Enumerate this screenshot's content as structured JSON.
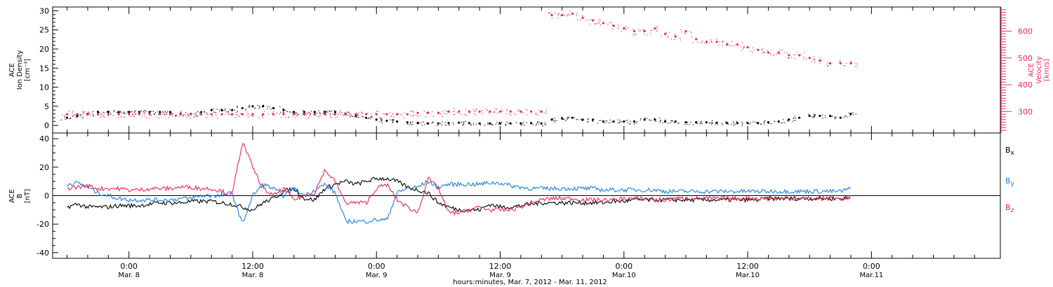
{
  "chart_data": [
    {
      "type": "scatter",
      "panel": "plasma",
      "ylabel_lines": [
        "ACE",
        "Ion Density",
        "[cm⁻³]"
      ],
      "ylim": [
        -2,
        31
      ],
      "yticks": [
        0,
        5,
        10,
        15,
        20,
        25,
        30
      ],
      "right_ylabel_lines": [
        "ACE",
        "Velocity",
        "[km/s]"
      ],
      "right_ylim": [
        220,
        690
      ],
      "right_yticks": [
        300,
        400,
        500,
        600
      ],
      "colors": {
        "density": "#000000",
        "velocity": "#e8285a"
      },
      "series": [
        {
          "axis": "left",
          "color": "#000000",
          "x_hours": [
            -6,
            -5,
            -4,
            -3,
            -2,
            -1,
            0,
            1,
            2,
            3,
            4,
            5,
            6,
            7,
            8,
            9,
            10,
            11,
            12,
            13,
            14,
            15,
            16,
            17,
            18,
            19,
            20,
            21,
            22,
            23,
            24,
            25,
            26,
            27,
            28,
            29,
            30,
            31,
            32,
            33,
            34,
            35,
            36,
            37,
            38,
            39,
            40,
            41,
            42,
            43,
            44,
            45,
            46,
            47,
            48,
            49,
            50,
            51,
            52,
            53,
            54,
            55,
            56,
            57,
            58,
            59,
            60,
            61,
            62,
            63,
            64,
            65,
            66,
            67,
            68,
            69,
            70
          ],
          "values": [
            2.0,
            2.5,
            3.0,
            3.5,
            3.5,
            3.5,
            3.5,
            3.5,
            3.5,
            3.5,
            3.5,
            3.0,
            3.0,
            3.5,
            4.0,
            4.0,
            4.0,
            4.5,
            5.0,
            5.0,
            4.5,
            4.0,
            3.5,
            3.5,
            3.5,
            3.5,
            3.5,
            3.0,
            2.5,
            2.0,
            1.5,
            1.2,
            1.0,
            0.8,
            0.6,
            0.5,
            0.5,
            0.6,
            0.7,
            0.6,
            0.5,
            0.5,
            0.5,
            0.5,
            0.5,
            0.6,
            0.5,
            1.5,
            1.8,
            2.0,
            1.5,
            1.5,
            1.0,
            1.0,
            1.0,
            1.0,
            1.5,
            1.5,
            1.0,
            1.0,
            0.8,
            0.8,
            0.8,
            0.7,
            0.6,
            0.6,
            0.6,
            0.6,
            0.8,
            1.0,
            1.5,
            2.0,
            2.5,
            2.5,
            2.5,
            2.0,
            3.0
          ]
        },
        {
          "axis": "right",
          "color": "#e8285a",
          "x_hours": [
            -6,
            -5,
            -4,
            -3,
            -2,
            -1,
            0,
            1,
            2,
            3,
            4,
            5,
            6,
            7,
            8,
            9,
            10,
            11,
            12,
            13,
            14,
            15,
            16,
            17,
            18,
            19,
            20,
            21,
            22,
            23,
            24,
            25,
            26,
            27,
            28,
            29,
            30,
            31,
            32,
            33,
            34,
            35,
            36,
            37,
            38,
            39,
            40,
            41,
            42,
            43,
            44,
            45,
            46,
            47,
            48,
            49,
            50,
            51,
            52,
            53,
            54,
            55,
            56,
            57,
            58,
            59,
            60,
            61,
            62,
            63,
            64,
            65,
            66,
            67,
            68,
            69,
            70
          ],
          "values": [
            290,
            290,
            290,
            290,
            290,
            290,
            290,
            290,
            290,
            290,
            290,
            290,
            290,
            290,
            290,
            290,
            290,
            290,
            290,
            290,
            290,
            290,
            290,
            290,
            290,
            290,
            290,
            290,
            290,
            290,
            290,
            290,
            290,
            290,
            295,
            295,
            295,
            300,
            300,
            300,
            300,
            300,
            300,
            300,
            300,
            300,
            300,
            660,
            660,
            665,
            650,
            640,
            630,
            620,
            610,
            600,
            600,
            610,
            590,
            580,
            600,
            570,
            560,
            560,
            550,
            550,
            540,
            530,
            520,
            520,
            510,
            510,
            500,
            490,
            480,
            480,
            480
          ]
        }
      ]
    },
    {
      "type": "line",
      "panel": "magnetic",
      "ylabel_lines": [
        "ACE",
        "B",
        "[nT]"
      ],
      "ylim": [
        -44,
        44
      ],
      "yticks": [
        -40,
        -20,
        0,
        20,
        40
      ],
      "zero_line": true,
      "series": [
        {
          "name": "Bx",
          "label_main": "B",
          "label_sub": "x",
          "color": "#000000",
          "x_hours": [
            -6,
            -5,
            -4,
            -3,
            -2,
            -1,
            0,
            1,
            2,
            3,
            4,
            5,
            6,
            7,
            8,
            9,
            10,
            11,
            12,
            13,
            14,
            15,
            16,
            17,
            18,
            19,
            20,
            21,
            22,
            23,
            24,
            25,
            26,
            27,
            28,
            29,
            30,
            31,
            32,
            33,
            34,
            35,
            36,
            37,
            38,
            39,
            40,
            41,
            42,
            43,
            44,
            45,
            46,
            47,
            48,
            49,
            50,
            51,
            52,
            53,
            54,
            55,
            56,
            57,
            58,
            59,
            60,
            61,
            62,
            63,
            64,
            65,
            66,
            67,
            68,
            69,
            70
          ],
          "values": [
            -8,
            -6,
            -8,
            -8,
            -8,
            -7,
            -7,
            -7,
            -6,
            -5,
            -5,
            -5,
            -4,
            -4,
            -4,
            -5,
            -6,
            -8,
            -10,
            -5,
            -2,
            3,
            5,
            -2,
            -3,
            5,
            8,
            10,
            8,
            10,
            12,
            12,
            10,
            6,
            4,
            2,
            -5,
            -8,
            -10,
            -10,
            -10,
            -6,
            -8,
            -8,
            -7,
            -6,
            -5,
            -5,
            -5,
            -5,
            -5,
            -5,
            -5,
            -4,
            -4,
            -3,
            -3,
            -3,
            -3,
            -3,
            -3,
            -3,
            -3,
            -3,
            -3,
            -3,
            -3,
            -3,
            -2,
            -2,
            -2,
            -2,
            -2,
            -2,
            -2,
            -2,
            -2
          ]
        },
        {
          "name": "By",
          "label_main": "B",
          "label_sub": "y",
          "color": "#1f7fe0",
          "x_hours": [
            -6,
            -5,
            -4,
            -3,
            -2,
            -1,
            0,
            1,
            2,
            3,
            4,
            5,
            6,
            7,
            8,
            9,
            10,
            11,
            12,
            13,
            14,
            15,
            16,
            17,
            18,
            19,
            20,
            21,
            22,
            23,
            24,
            25,
            26,
            27,
            28,
            29,
            30,
            31,
            32,
            33,
            34,
            35,
            36,
            37,
            38,
            39,
            40,
            41,
            42,
            43,
            44,
            45,
            46,
            47,
            48,
            49,
            50,
            51,
            52,
            53,
            54,
            55,
            56,
            57,
            58,
            59,
            60,
            61,
            62,
            63,
            64,
            65,
            66,
            67,
            68,
            69,
            70
          ],
          "values": [
            8,
            9,
            6,
            2,
            0,
            -2,
            -3,
            -3,
            -3,
            -3,
            -3,
            -2,
            -2,
            0,
            0,
            0,
            2,
            -20,
            0,
            8,
            5,
            0,
            5,
            0,
            4,
            8,
            2,
            -18,
            -18,
            -18,
            -17,
            -17,
            2,
            5,
            6,
            10,
            6,
            8,
            8,
            8,
            8,
            9,
            9,
            7,
            6,
            5,
            5,
            5,
            5,
            5,
            5,
            5,
            4,
            4,
            4,
            4,
            4,
            4,
            3,
            3,
            3,
            3,
            3,
            3,
            3,
            3,
            3,
            3,
            3,
            3,
            3,
            3,
            3,
            3,
            3,
            3,
            5
          ]
        },
        {
          "name": "Bz",
          "label_main": "B",
          "label_sub": "z",
          "color": "#e8285a",
          "x_hours": [
            -6,
            -5,
            -4,
            -3,
            -2,
            -1,
            0,
            1,
            2,
            3,
            4,
            5,
            6,
            7,
            8,
            9,
            10,
            11,
            12,
            13,
            14,
            15,
            16,
            17,
            18,
            19,
            20,
            21,
            22,
            23,
            24,
            25,
            26,
            27,
            28,
            29,
            30,
            31,
            32,
            33,
            34,
            35,
            36,
            37,
            38,
            39,
            40,
            41,
            42,
            43,
            44,
            45,
            46,
            47,
            48,
            49,
            50,
            51,
            52,
            53,
            54,
            55,
            56,
            57,
            58,
            59,
            60,
            61,
            62,
            63,
            64,
            65,
            66,
            67,
            68,
            69,
            70
          ],
          "values": [
            5,
            6,
            7,
            5,
            5,
            5,
            4,
            4,
            5,
            5,
            5,
            6,
            6,
            5,
            5,
            3,
            0,
            38,
            20,
            5,
            0,
            5,
            -3,
            0,
            2,
            18,
            10,
            -5,
            -5,
            -5,
            5,
            8,
            -3,
            -8,
            -12,
            12,
            5,
            -12,
            -12,
            -10,
            -8,
            -10,
            -10,
            -10,
            -8,
            -5,
            -3,
            -2,
            -2,
            -2,
            -3,
            -3,
            -3,
            -3,
            -2,
            -2,
            -2,
            -3,
            -3,
            -2,
            -2,
            -2,
            -2,
            -2,
            -2,
            -2,
            -2,
            -2,
            -2,
            -2,
            -2,
            -2,
            -2,
            -2,
            -2,
            -2,
            -1
          ]
        }
      ]
    }
  ],
  "xaxis": {
    "range_hours": [
      -7.4,
      84.5
    ],
    "major_ticks": [
      {
        "hours": 0,
        "time": "0:00",
        "date": "Mar. 8"
      },
      {
        "hours": 12,
        "time": "12:00",
        "date": "Mar. 8"
      },
      {
        "hours": 24,
        "time": "0:00",
        "date": "Mar. 9"
      },
      {
        "hours": 36,
        "time": "12:00",
        "date": "Mar. 9"
      },
      {
        "hours": 48,
        "time": "0:00",
        "date": "Mar.10"
      },
      {
        "hours": 60,
        "time": "12:00",
        "date": "Mar.10"
      },
      {
        "hours": 72,
        "time": "0:00",
        "date": "Mar.11"
      }
    ],
    "label": "hours:minutes, Mar.  7, 2012 - Mar. 11, 2012"
  }
}
